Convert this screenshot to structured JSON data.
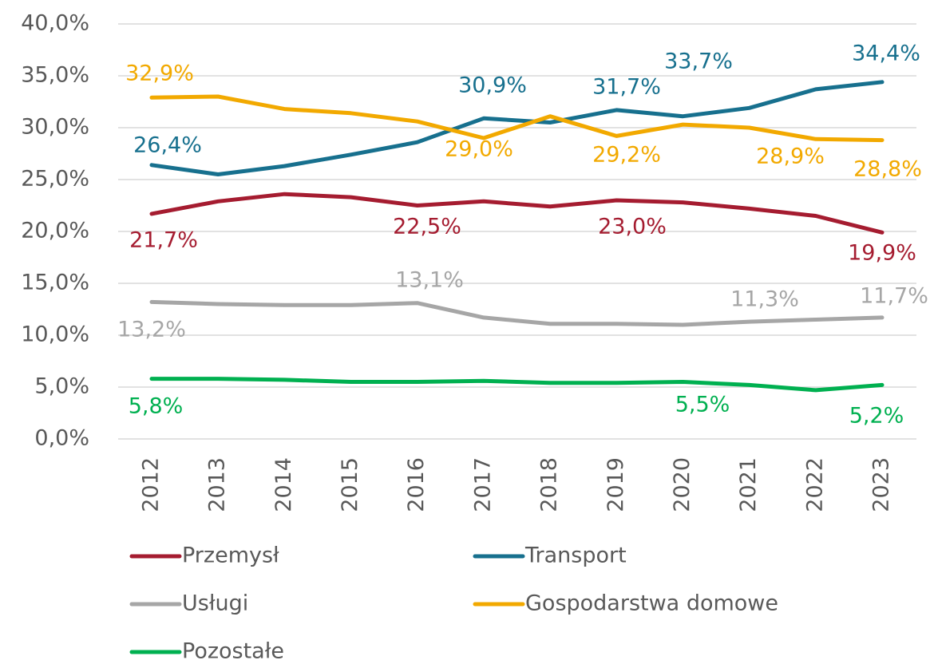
{
  "chart_data": {
    "type": "line",
    "categories": [
      "2012",
      "2013",
      "2014",
      "2015",
      "2016",
      "2017",
      "2018",
      "2019",
      "2020",
      "2021",
      "2022",
      "2023"
    ],
    "ylim": [
      0,
      40
    ],
    "yticks": [
      {
        "value": 0,
        "label": "0,0%"
      },
      {
        "value": 5,
        "label": "5,0%"
      },
      {
        "value": 10,
        "label": "10,0%"
      },
      {
        "value": 15,
        "label": "15,0%"
      },
      {
        "value": 20,
        "label": "20,0%"
      },
      {
        "value": 25,
        "label": "25,0%"
      },
      {
        "value": 30,
        "label": "30,0%"
      },
      {
        "value": 35,
        "label": "35,0%"
      },
      {
        "value": 40,
        "label": "40,0%"
      }
    ],
    "grid": true,
    "legend": "bottom",
    "series": [
      {
        "name": "Przemysł",
        "color": "#a51c30",
        "values": [
          21.7,
          22.9,
          23.6,
          23.3,
          22.5,
          22.9,
          22.4,
          23.0,
          22.8,
          22.2,
          21.5,
          19.9
        ],
        "value_labels": [
          "21,7%",
          null,
          null,
          null,
          "22,5%",
          null,
          null,
          "23,0%",
          null,
          null,
          null,
          "19,9%"
        ]
      },
      {
        "name": "Transport",
        "color": "#17708e",
        "values": [
          26.4,
          25.5,
          26.3,
          27.4,
          28.6,
          30.9,
          30.5,
          31.7,
          31.1,
          31.9,
          33.7,
          34.4
        ],
        "value_labels": [
          "26,4%",
          null,
          null,
          null,
          null,
          "30,9%",
          null,
          "31,7%",
          null,
          null,
          "33,7%",
          "34,4%"
        ]
      },
      {
        "name": "Usługi",
        "color": "#a6a6a6",
        "values": [
          13.2,
          13.0,
          12.9,
          12.9,
          13.1,
          11.7,
          11.1,
          11.1,
          11.0,
          11.3,
          11.5,
          11.7
        ],
        "value_labels": [
          "13,2%",
          null,
          null,
          null,
          "13,1%",
          null,
          null,
          null,
          null,
          "11,3%",
          null,
          "11,7%"
        ]
      },
      {
        "name": "Gospodarstwa domowe",
        "color": "#f2a900",
        "values": [
          32.9,
          33.0,
          31.8,
          31.4,
          30.6,
          29.0,
          31.1,
          29.2,
          30.3,
          30.0,
          28.9,
          28.8
        ],
        "value_labels": [
          "32,9%",
          null,
          null,
          null,
          null,
          "29,0%",
          null,
          "29,2%",
          null,
          null,
          "28,9%",
          "28,8%"
        ]
      },
      {
        "name": "Pozostałe",
        "color": "#00b050",
        "values": [
          5.8,
          5.8,
          5.7,
          5.5,
          5.5,
          5.6,
          5.4,
          5.4,
          5.5,
          5.2,
          4.7,
          5.2
        ],
        "value_labels": [
          "5,8%",
          null,
          null,
          null,
          null,
          null,
          null,
          null,
          "5,5%",
          null,
          null,
          "5,2%"
        ]
      }
    ]
  }
}
